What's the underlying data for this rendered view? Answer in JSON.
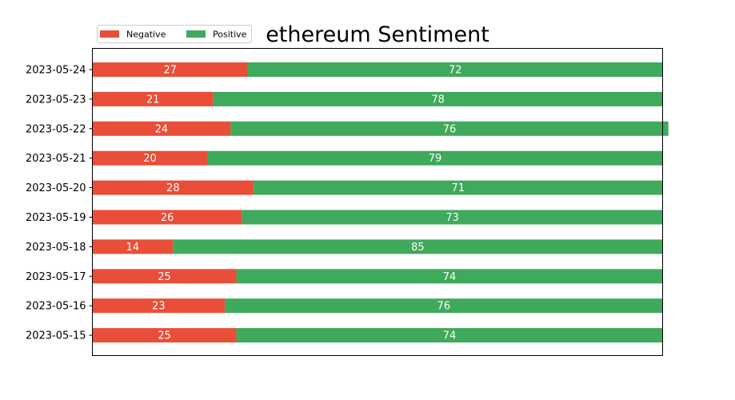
{
  "chart_data": {
    "type": "bar",
    "orientation": "horizontal",
    "stacked": true,
    "title": "ethereum Sentiment",
    "xlabel": "",
    "ylabel": "",
    "categories": [
      "2023-05-15",
      "2023-05-16",
      "2023-05-17",
      "2023-05-18",
      "2023-05-19",
      "2023-05-20",
      "2023-05-21",
      "2023-05-22",
      "2023-05-23",
      "2023-05-24"
    ],
    "series": [
      {
        "name": "Negative",
        "color": "#e84e38",
        "values": [
          25,
          23,
          25,
          14,
          26,
          28,
          20,
          24,
          21,
          27
        ]
      },
      {
        "name": "Positive",
        "color": "#3fa95c",
        "values": [
          74,
          76,
          74,
          85,
          73,
          71,
          79,
          76,
          78,
          72
        ]
      }
    ],
    "xlim": [
      0,
      99
    ],
    "x_ticks_visible": false,
    "grid": false,
    "data_labels": true,
    "legend": {
      "position": "top-left, above plot",
      "columns": 2
    }
  }
}
